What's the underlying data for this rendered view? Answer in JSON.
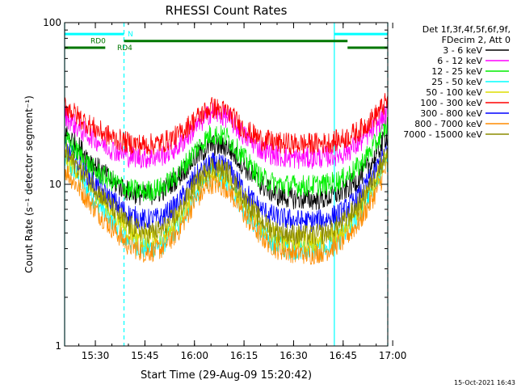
{
  "chart_data": {
    "type": "line",
    "title": "RHESSI Count Rates",
    "xlabel": "Start Time (29-Aug-09 15:20:42)",
    "ylabel": "Count Rate (s⁻¹ detector segment⁻¹)",
    "y_scale": "log",
    "ylim": [
      1,
      100
    ],
    "xlim": [
      "15:20:42",
      "16:58:30"
    ],
    "x_ticks": [
      "15:30",
      "15:45",
      "16:00",
      "16:15",
      "16:30",
      "16:45",
      "17:00"
    ],
    "y_ticks": [
      "1",
      "10",
      "100"
    ],
    "legend_header": [
      "Det 1f,3f,4f,5f,6f,9f,",
      "FDecim 2, Att 0"
    ],
    "legend_placement": "right",
    "timestamp": "15-Oct-2021 16:43",
    "x": [
      "15:20:42",
      "15:25",
      "15:30",
      "15:35",
      "15:40",
      "15:45",
      "15:50",
      "15:55",
      "16:00",
      "16:05",
      "16:10",
      "16:15",
      "16:20",
      "16:25",
      "16:30",
      "16:35",
      "16:40",
      "16:45",
      "16:50",
      "16:55",
      "16:58"
    ],
    "series": [
      {
        "name": "3 - 6 keV",
        "color": "#000000",
        "values": [
          21,
          17,
          13,
          10.5,
          9,
          8.5,
          9,
          11,
          14.5,
          17.5,
          17,
          13,
          10,
          8.5,
          8.2,
          8,
          8.2,
          9,
          11,
          15,
          20
        ]
      },
      {
        "name": "6 - 12 keV",
        "color": "#ff00ff",
        "values": [
          27,
          22,
          19,
          16.5,
          15,
          14.5,
          15,
          17,
          22,
          28,
          26,
          20,
          16.5,
          15,
          14.5,
          14.5,
          14.8,
          15.5,
          18,
          23,
          27
        ]
      },
      {
        "name": "12 - 25 keV",
        "color": "#00ee00",
        "values": [
          19,
          15.5,
          12,
          10.5,
          9.3,
          9,
          9.5,
          11.5,
          16,
          20.5,
          19.5,
          14.5,
          11,
          10,
          9.8,
          9.8,
          10,
          10.8,
          13,
          18,
          23
        ]
      },
      {
        "name": "25 - 50 keV",
        "color": "#00ffff",
        "values": [
          14,
          11,
          8,
          6,
          4.5,
          4,
          4.2,
          5.5,
          8.5,
          11.5,
          10.5,
          7,
          5,
          4.2,
          4,
          3.9,
          4,
          4.8,
          6.5,
          10,
          14
        ]
      },
      {
        "name": "50 - 100 keV",
        "color": "#dddd00",
        "values": [
          15,
          12,
          9,
          6.8,
          5.2,
          4.6,
          4.8,
          6.2,
          9.5,
          12.5,
          11.5,
          7.8,
          5.6,
          4.7,
          4.5,
          4.4,
          4.6,
          5.4,
          7.2,
          11,
          15
        ]
      },
      {
        "name": "100 - 300 keV",
        "color": "#ff0000",
        "values": [
          31,
          26,
          22,
          19.5,
          18,
          17.5,
          18,
          20,
          25,
          30,
          28,
          22,
          19,
          18,
          17.8,
          17.8,
          18,
          19,
          21.5,
          27,
          32
        ]
      },
      {
        "name": "300 - 800 keV",
        "color": "#0000ff",
        "values": [
          17,
          13.5,
          10,
          8,
          6.5,
          6,
          6.2,
          7.6,
          11,
          13.5,
          12.8,
          9.2,
          7,
          6.2,
          6,
          5.9,
          6.1,
          6.8,
          8.6,
          12.5,
          16
        ]
      },
      {
        "name": "800 - 7000 keV",
        "color": "#ff8c00",
        "values": [
          12.5,
          9.5,
          7,
          5.4,
          4.2,
          3.8,
          4,
          5.1,
          7.8,
          10.2,
          9.5,
          6.5,
          4.8,
          4,
          3.8,
          3.7,
          3.9,
          4.5,
          5.9,
          9,
          12.5
        ]
      },
      {
        "name": "7000 - 15000 keV",
        "color": "#8b8b00",
        "values": [
          16,
          12.5,
          9.5,
          7.2,
          5.6,
          5,
          5.2,
          6.6,
          10,
          13,
          12,
          8.2,
          6,
          5.1,
          4.9,
          4.8,
          5,
          5.8,
          7.6,
          11.5,
          15.5
        ]
      }
    ],
    "annotations": [
      {
        "label": "N",
        "type": "bar",
        "color": "#00ffff",
        "y": 85,
        "ranges": [
          [
            "15:20:42",
            "15:38:40"
          ],
          [
            "16:42:20",
            "16:58:30"
          ]
        ]
      },
      {
        "label": "RD0",
        "type": "bar",
        "color": "#007700",
        "y": 77,
        "ranges": [
          [
            "15:38:40",
            "16:46:20"
          ]
        ]
      },
      {
        "label": "RD4",
        "type": "bar",
        "color": "#007700",
        "y": 70,
        "ranges": [
          [
            "15:20:42",
            "15:33:00"
          ],
          [
            "16:46:20",
            "16:58:30"
          ]
        ]
      }
    ],
    "vlines": [
      {
        "x": "15:20:42",
        "style": "solid",
        "color": "#00ffff"
      },
      {
        "x": "15:38:40",
        "style": "dashed",
        "color": "#00ffff"
      },
      {
        "x": "16:42:20",
        "style": "solid",
        "color": "#00ffff"
      },
      {
        "x": "16:58:30",
        "style": "dashed",
        "color": "#00ffff"
      }
    ]
  }
}
